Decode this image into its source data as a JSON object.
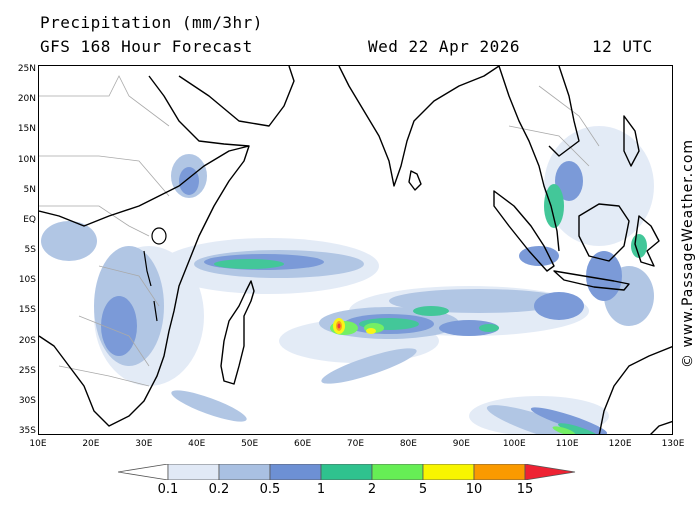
{
  "header": {
    "title": "Precipitation (mm/3hr)",
    "subtitle": "GFS 168 Hour Forecast",
    "date": "Wed 22 Apr 2026",
    "time": "12 UTC"
  },
  "credit": "© www.PassageWeather.com",
  "map": {
    "projection": "equirectangular",
    "lon_range": [
      10,
      130
    ],
    "lat_range": [
      -35,
      25
    ],
    "lat_ticks": [
      "25N",
      "20N",
      "15N",
      "10N",
      "5N",
      "EQ",
      "5S",
      "10S",
      "15S",
      "20S",
      "25S",
      "30S",
      "35S"
    ],
    "lon_ticks": [
      "10E",
      "20E",
      "30E",
      "40E",
      "50E",
      "60E",
      "70E",
      "80E",
      "90E",
      "100E",
      "110E",
      "120E",
      "130E"
    ]
  },
  "legend": {
    "labels": [
      "0.1",
      "0.2",
      "0.5",
      "1",
      "2",
      "5",
      "10",
      "15"
    ],
    "colors": [
      "#ffffff",
      "#e1e9f6",
      "#a9c0e2",
      "#6d90d4",
      "#2fc28e",
      "#66ee55",
      "#f8f500",
      "#fa9a00",
      "#ee2233"
    ]
  }
}
